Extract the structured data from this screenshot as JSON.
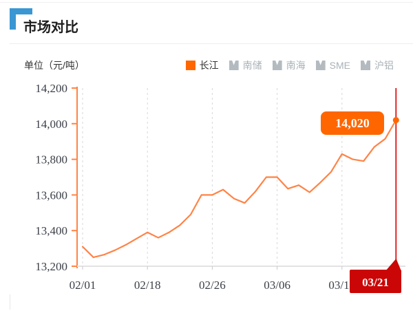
{
  "header": {
    "title": "市场对比"
  },
  "chart_meta": {
    "unit_label": "单位（元/吨）"
  },
  "legend": {
    "items": [
      {
        "label": "长江",
        "active": true
      },
      {
        "label": "南储",
        "active": false
      },
      {
        "label": "南海",
        "active": false
      },
      {
        "label": "SME",
        "active": false
      },
      {
        "label": "沪铝",
        "active": false
      }
    ]
  },
  "chart_data": {
    "type": "line",
    "title": "市场对比",
    "unit": "元/吨",
    "legend_position": "top-right",
    "grid": {
      "vertical_dashed": true,
      "horizontal": false
    },
    "ylim": [
      13200,
      14200
    ],
    "y_ticks": [
      {
        "value": 13200,
        "label": "13,200"
      },
      {
        "value": 13400,
        "label": "13,400"
      },
      {
        "value": 13600,
        "label": "13,600"
      },
      {
        "value": 13800,
        "label": "13,800"
      },
      {
        "value": 14000,
        "label": "14,000"
      },
      {
        "value": 14200,
        "label": "14,200"
      }
    ],
    "x_ticks": [
      {
        "label": "02/01",
        "index": 0
      },
      {
        "label": "02/18",
        "index": 6
      },
      {
        "label": "02/26",
        "index": 12
      },
      {
        "label": "03/06",
        "index": 18
      },
      {
        "label": "03/14",
        "index": 24
      }
    ],
    "series": [
      {
        "name": "长江",
        "values": [
          13310,
          13250,
          13265,
          13290,
          13320,
          13355,
          13390,
          13360,
          13390,
          13430,
          13490,
          13600,
          13600,
          13630,
          13580,
          13555,
          13620,
          13700,
          13700,
          13635,
          13655,
          13615,
          13670,
          13730,
          13830,
          13800,
          13790,
          13870,
          13915,
          14020
        ]
      }
    ],
    "highlight": {
      "index": 29,
      "date_label": "03/21",
      "value": 14020,
      "value_label": "14,020"
    }
  },
  "colors": {
    "accent_blue": "#3a97d3",
    "series_orange": "#ff8345",
    "legend_orange": "#ff6600",
    "label_bg_orange": "#ff6600",
    "inactive_gray": "#b3bac0",
    "inactive_text": "#a9b1b7",
    "highlight_red_line": "#e02525",
    "highlight_red_bg": "#cb0606",
    "axis_text": "#3c4048",
    "grid_gray": "#d7d7d7",
    "axis_line_gray": "#e2e2e2"
  }
}
